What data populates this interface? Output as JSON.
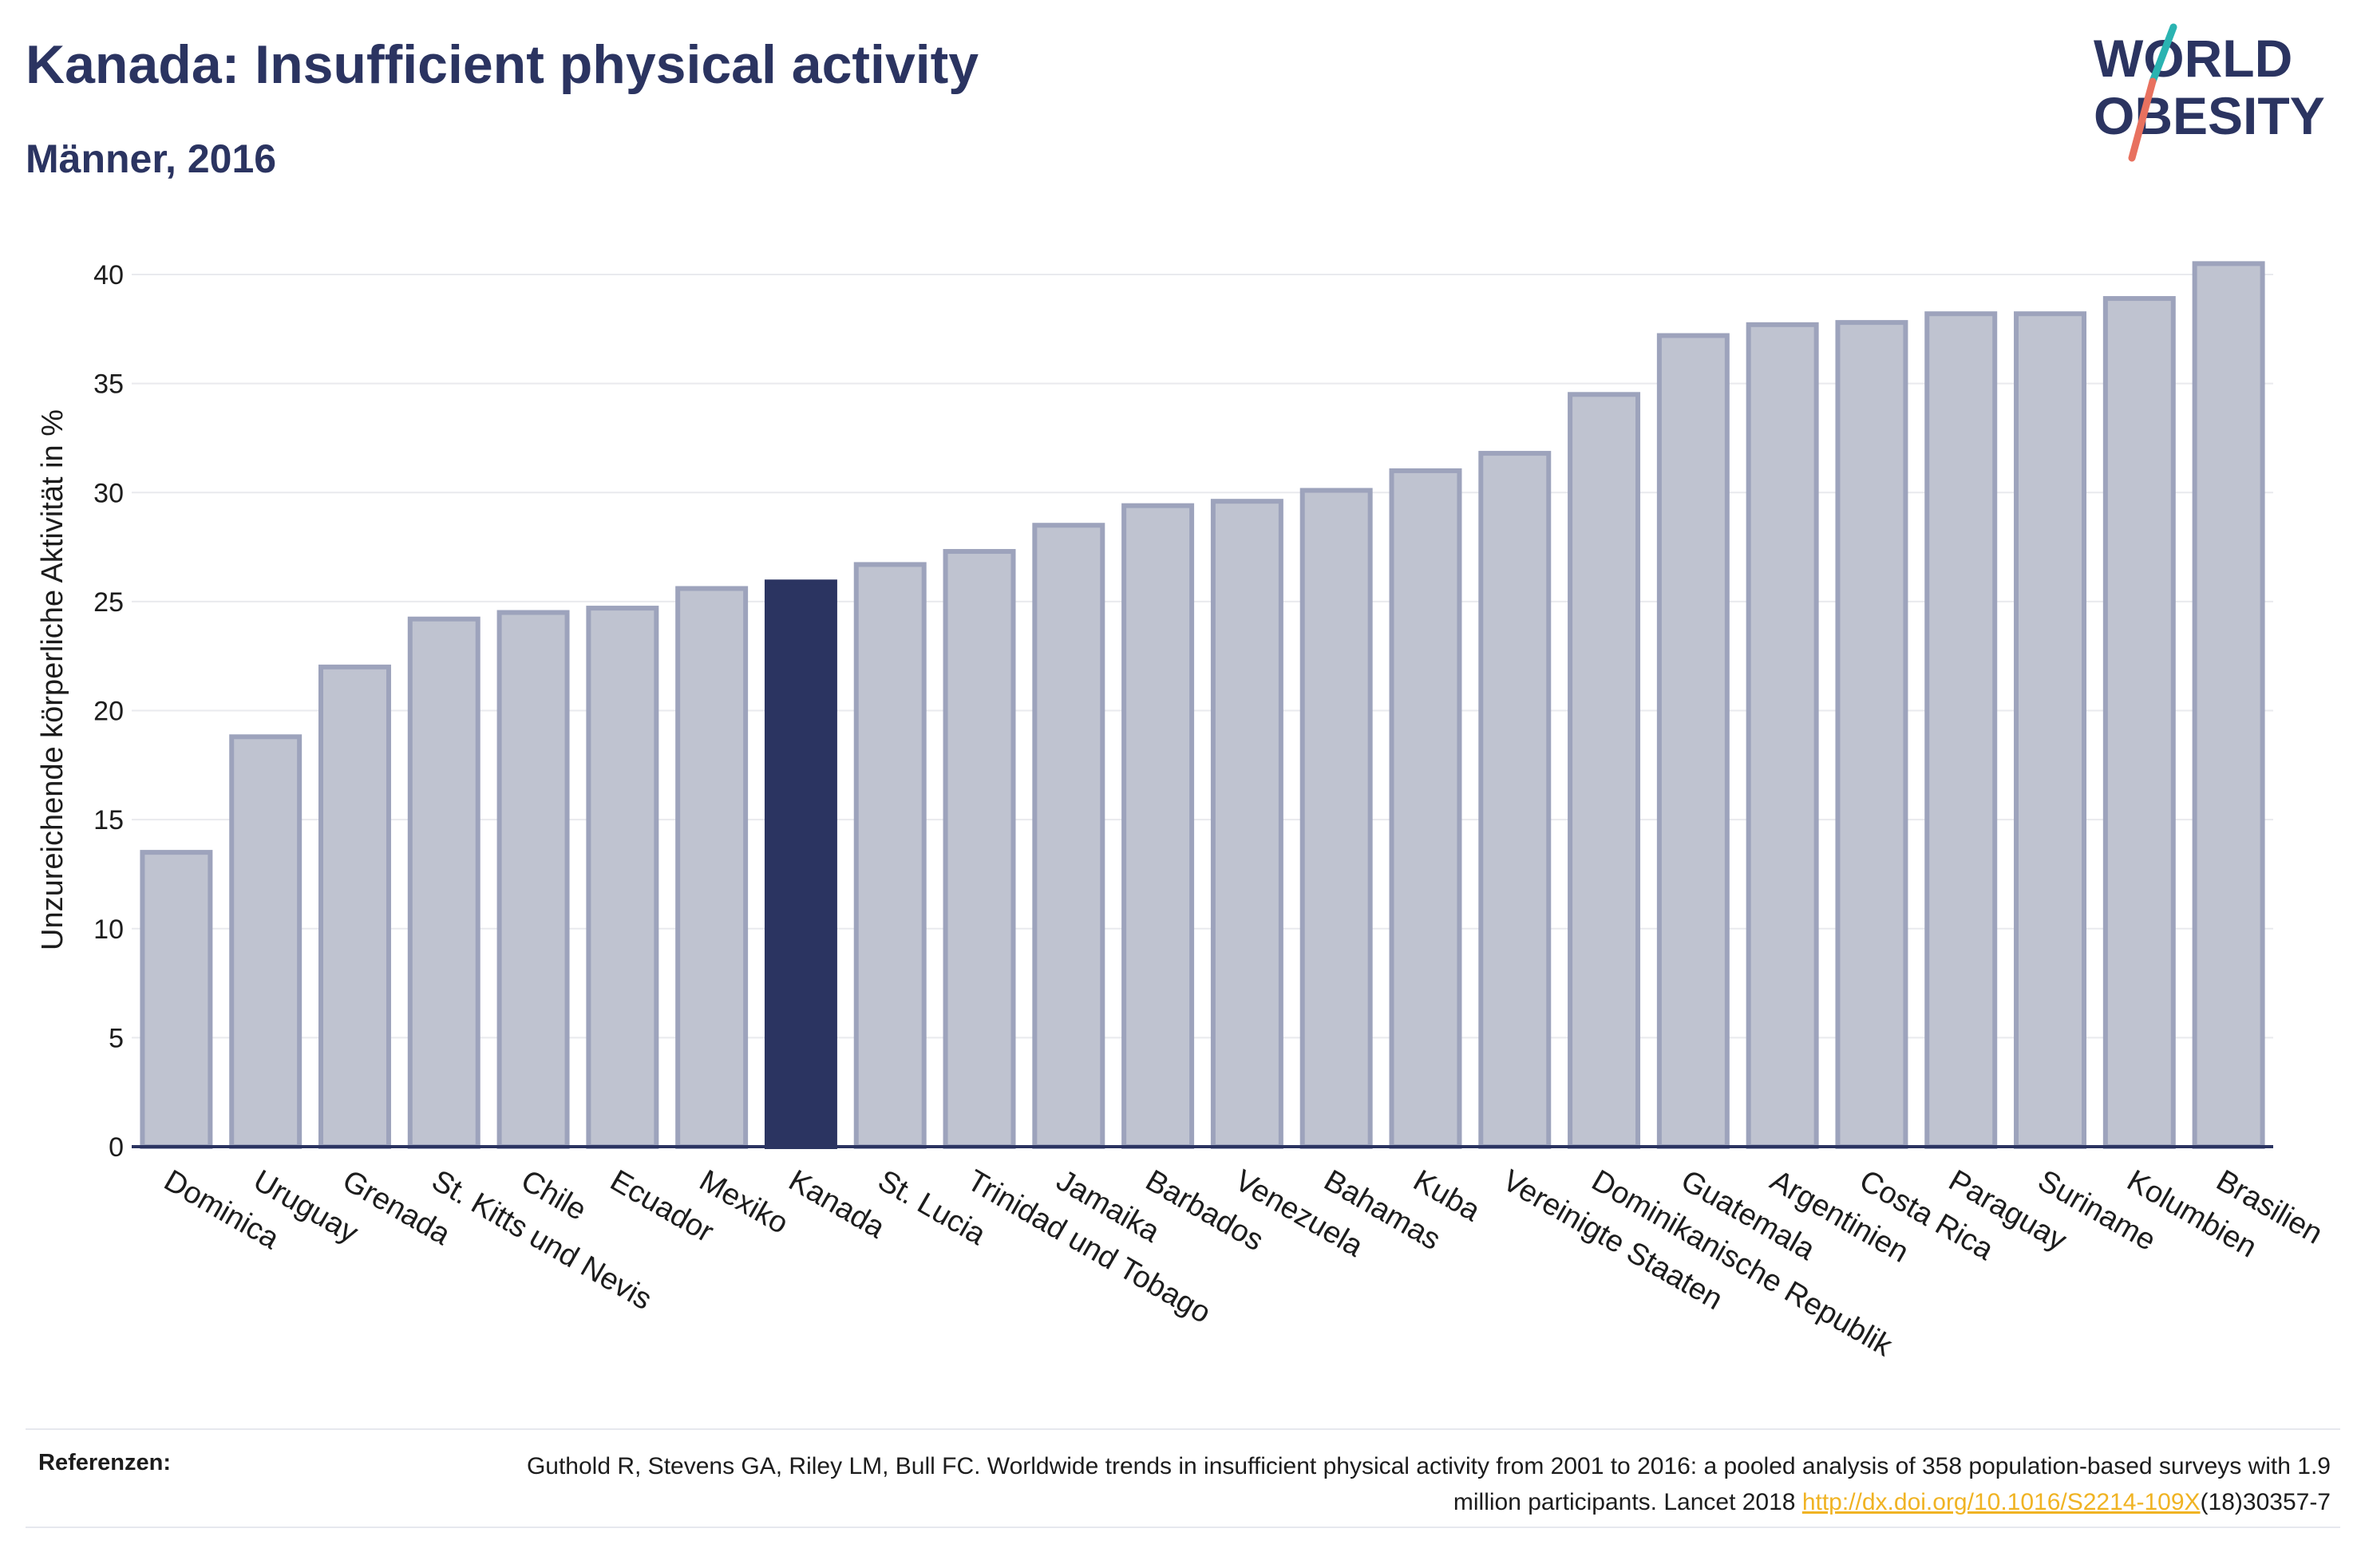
{
  "header": {
    "title": "Kanada: Insufficient physical activity",
    "subtitle": "Männer, 2016"
  },
  "logo": {
    "line1": "WORLD",
    "line2": "OBESITY"
  },
  "chart_data": {
    "type": "bar",
    "ylabel": "Unzureichende körperliche Aktivität in %",
    "xlabel": "",
    "ylim": [
      0,
      42
    ],
    "yticks": [
      0,
      5,
      10,
      15,
      20,
      25,
      30,
      35,
      40
    ],
    "grid": true,
    "categories": [
      "Dominica",
      "Uruguay",
      "Grenada",
      "St. Kitts und Nevis",
      "Chile",
      "Ecuador",
      "Mexiko",
      "Kanada",
      "St. Lucia",
      "Trinidad und Tobago",
      "Jamaika",
      "Barbados",
      "Venezuela",
      "Bahamas",
      "Kuba",
      "Vereinigte Staaten",
      "Dominikanische Republik",
      "Guatemala",
      "Argentinien",
      "Costa Rica",
      "Paraguay",
      "Suriname",
      "Kolumbien",
      "Brasilien"
    ],
    "values": [
      13.5,
      18.8,
      22.0,
      24.2,
      24.5,
      24.7,
      25.6,
      25.9,
      26.7,
      27.3,
      28.5,
      29.4,
      29.6,
      30.1,
      31.0,
      31.8,
      34.5,
      37.2,
      37.7,
      37.8,
      38.2,
      38.2,
      38.9,
      40.5
    ],
    "highlight": "Kanada",
    "colors": {
      "bar_fill": "#bfc3d0",
      "bar_edge": "#9da3bc",
      "highlight_fill": "#2b3461",
      "grid": "#e9eaee",
      "axis": "#2b3461"
    }
  },
  "references": {
    "label": "Referenzen:",
    "text": "Guthold R, Stevens GA, Riley LM, Bull FC. Worldwide trends in insufficient physical activity from 2001 to 2016: a pooled analysis of 358 population-based surveys with 1.9 million participants. Lancet 2018",
    "link_text": "http://dx.doi.org/10.1016/S2214-109X",
    "link_suffix": "(18)30357-7"
  }
}
